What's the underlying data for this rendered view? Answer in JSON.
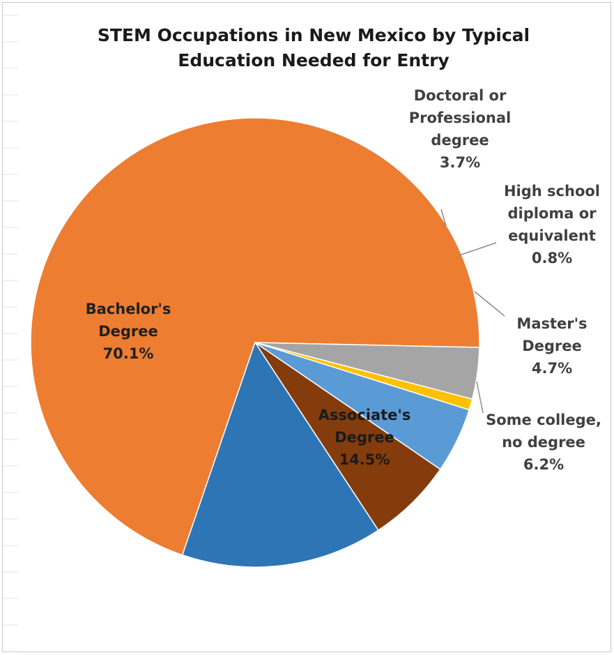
{
  "chart_data": {
    "type": "pie",
    "title": "STEM Occupations in New Mexico by Typical Education Needed for Entry",
    "title_lines": [
      "STEM Occupations in New Mexico by Typical",
      "Education Needed for Entry"
    ],
    "legend": "none",
    "slices": [
      {
        "label": "Bachelor's Degree",
        "label_lines": [
          "Bachelor's",
          "Degree"
        ],
        "value": 70.1,
        "value_label": "70.1%",
        "color": "#ED7D31",
        "text_color": "#1f1f1f"
      },
      {
        "label": "Doctoral or Professional degree",
        "label_lines": [
          "Doctoral or",
          "Professional",
          "degree"
        ],
        "value": 3.7,
        "value_label": "3.7%",
        "color": "#A5A5A5",
        "text_color": "#404040"
      },
      {
        "label": "High school diploma or equivalent",
        "label_lines": [
          "High school",
          "diploma or",
          "equivalent"
        ],
        "value": 0.8,
        "value_label": "0.8%",
        "color": "#FFC000",
        "text_color": "#404040"
      },
      {
        "label": "Master's Degree",
        "label_lines": [
          "Master's",
          "Degree"
        ],
        "value": 4.7,
        "value_label": "4.7%",
        "color": "#5B9BD5",
        "text_color": "#404040"
      },
      {
        "label": "Some college, no degree",
        "label_lines": [
          "Some college,",
          "no degree"
        ],
        "value": 6.2,
        "value_label": "6.2%",
        "color": "#843C0C",
        "text_color": "#404040"
      },
      {
        "label": "Associate's Degree",
        "label_lines": [
          "Associate's",
          "Degree"
        ],
        "value": 14.5,
        "value_label": "14.5%",
        "color": "#2E75B6",
        "text_color": "#1a1a1a"
      }
    ]
  }
}
